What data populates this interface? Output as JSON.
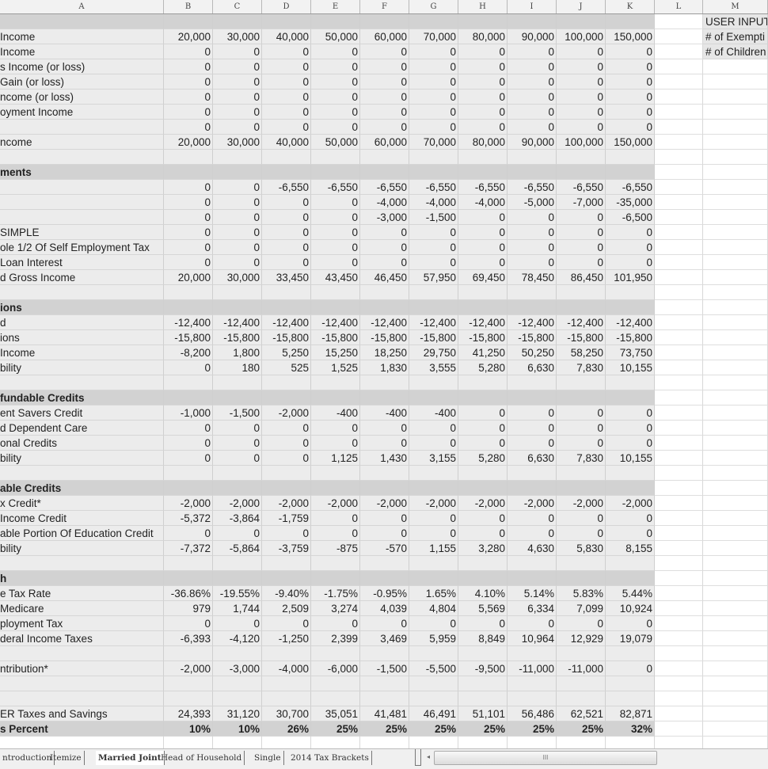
{
  "columns": [
    "A",
    "B",
    "C",
    "D",
    "E",
    "F",
    "G",
    "H",
    "I",
    "J",
    "K",
    "L",
    "M"
  ],
  "user_input": {
    "title": "USER INPUT",
    "exemptions_label": "# of Exempti",
    "children_label": "# of Children"
  },
  "rows": [
    {
      "type": "section",
      "label": "",
      "values": []
    },
    {
      "label": "Income",
      "values": [
        "20,000",
        "30,000",
        "40,000",
        "50,000",
        "60,000",
        "70,000",
        "80,000",
        "90,000",
        "100,000",
        "150,000"
      ]
    },
    {
      "label": "Income",
      "values": [
        "0",
        "0",
        "0",
        "0",
        "0",
        "0",
        "0",
        "0",
        "0",
        "0"
      ]
    },
    {
      "label": "s Income (or loss)",
      "values": [
        "0",
        "0",
        "0",
        "0",
        "0",
        "0",
        "0",
        "0",
        "0",
        "0"
      ]
    },
    {
      "label": "Gain (or loss)",
      "values": [
        "0",
        "0",
        "0",
        "0",
        "0",
        "0",
        "0",
        "0",
        "0",
        "0"
      ]
    },
    {
      "label": "ncome (or loss)",
      "values": [
        "0",
        "0",
        "0",
        "0",
        "0",
        "0",
        "0",
        "0",
        "0",
        "0"
      ]
    },
    {
      "label": "oyment Income",
      "values": [
        "0",
        "0",
        "0",
        "0",
        "0",
        "0",
        "0",
        "0",
        "0",
        "0"
      ]
    },
    {
      "label": "",
      "values": [
        "0",
        "0",
        "0",
        "0",
        "0",
        "0",
        "0",
        "0",
        "0",
        "0"
      ]
    },
    {
      "label": "ncome",
      "values": [
        "20,000",
        "30,000",
        "40,000",
        "50,000",
        "60,000",
        "70,000",
        "80,000",
        "90,000",
        "100,000",
        "150,000"
      ]
    },
    {
      "label": "",
      "values": []
    },
    {
      "type": "section",
      "label": "ments",
      "values": []
    },
    {
      "label": "",
      "values": [
        "0",
        "0",
        "-6,550",
        "-6,550",
        "-6,550",
        "-6,550",
        "-6,550",
        "-6,550",
        "-6,550",
        "-6,550"
      ]
    },
    {
      "label": "",
      "values": [
        "0",
        "0",
        "0",
        "0",
        "-4,000",
        "-4,000",
        "-4,000",
        "-5,000",
        "-7,000",
        "-35,000"
      ]
    },
    {
      "label": "",
      "values": [
        "0",
        "0",
        "0",
        "0",
        "-3,000",
        "-1,500",
        "0",
        "0",
        "0",
        "-6,500"
      ]
    },
    {
      "label": "SIMPLE",
      "values": [
        "0",
        "0",
        "0",
        "0",
        "0",
        "0",
        "0",
        "0",
        "0",
        "0"
      ]
    },
    {
      "label": "ole 1/2 Of Self Employment Tax",
      "values": [
        "0",
        "0",
        "0",
        "0",
        "0",
        "0",
        "0",
        "0",
        "0",
        "0"
      ]
    },
    {
      "label": " Loan Interest",
      "values": [
        "0",
        "0",
        "0",
        "0",
        "0",
        "0",
        "0",
        "0",
        "0",
        "0"
      ]
    },
    {
      "label": "d Gross Income",
      "values": [
        "20,000",
        "30,000",
        "33,450",
        "43,450",
        "46,450",
        "57,950",
        "69,450",
        "78,450",
        "86,450",
        "101,950"
      ]
    },
    {
      "label": "",
      "values": []
    },
    {
      "type": "section",
      "label": "ions",
      "values": []
    },
    {
      "label": "d",
      "values": [
        "-12,400",
        "-12,400",
        "-12,400",
        "-12,400",
        "-12,400",
        "-12,400",
        "-12,400",
        "-12,400",
        "-12,400",
        "-12,400"
      ]
    },
    {
      "label": "ions",
      "values": [
        "-15,800",
        "-15,800",
        "-15,800",
        "-15,800",
        "-15,800",
        "-15,800",
        "-15,800",
        "-15,800",
        "-15,800",
        "-15,800"
      ]
    },
    {
      "label": " Income",
      "values": [
        "-8,200",
        "1,800",
        "5,250",
        "15,250",
        "18,250",
        "29,750",
        "41,250",
        "50,250",
        "58,250",
        "73,750"
      ]
    },
    {
      "label": "bility",
      "values": [
        "0",
        "180",
        "525",
        "1,525",
        "1,830",
        "3,555",
        "5,280",
        "6,630",
        "7,830",
        "10,155"
      ]
    },
    {
      "label": "",
      "values": []
    },
    {
      "type": "section",
      "label": "fundable Credits",
      "values": []
    },
    {
      "label": "ent Savers Credit",
      "values": [
        "-1,000",
        "-1,500",
        "-2,000",
        "-400",
        "-400",
        "-400",
        "0",
        "0",
        "0",
        "0"
      ]
    },
    {
      "label": "d Dependent Care",
      "values": [
        "0",
        "0",
        "0",
        "0",
        "0",
        "0",
        "0",
        "0",
        "0",
        "0"
      ]
    },
    {
      "label": "onal Credits",
      "values": [
        "0",
        "0",
        "0",
        "0",
        "0",
        "0",
        "0",
        "0",
        "0",
        "0"
      ]
    },
    {
      "label": "bility",
      "values": [
        "0",
        "0",
        "0",
        "1,125",
        "1,430",
        "3,155",
        "5,280",
        "6,630",
        "7,830",
        "10,155"
      ]
    },
    {
      "label": "",
      "values": []
    },
    {
      "type": "section",
      "label": "able Credits",
      "values": []
    },
    {
      "label": "x Credit*",
      "values": [
        "-2,000",
        "-2,000",
        "-2,000",
        "-2,000",
        "-2,000",
        "-2,000",
        "-2,000",
        "-2,000",
        "-2,000",
        "-2,000"
      ]
    },
    {
      "label": "Income Credit",
      "values": [
        "-5,372",
        "-3,864",
        "-1,759",
        "0",
        "0",
        "0",
        "0",
        "0",
        "0",
        "0"
      ]
    },
    {
      "label": "able Portion Of Education Credit",
      "values": [
        "0",
        "0",
        "0",
        "0",
        "0",
        "0",
        "0",
        "0",
        "0",
        "0"
      ]
    },
    {
      "label": "bility",
      "values": [
        "-7,372",
        "-5,864",
        "-3,759",
        "-875",
        "-570",
        "1,155",
        "3,280",
        "4,630",
        "5,830",
        "8,155"
      ]
    },
    {
      "label": "",
      "values": []
    },
    {
      "type": "section",
      "label": "h",
      "values": []
    },
    {
      "label": "e Tax Rate",
      "values": [
        "-36.86%",
        "-19.55%",
        "-9.40%",
        "-1.75%",
        "-0.95%",
        "1.65%",
        "4.10%",
        "5.14%",
        "5.83%",
        "5.44%"
      ]
    },
    {
      "label": " Medicare",
      "values": [
        "979",
        "1,744",
        "2,509",
        "3,274",
        "4,039",
        "4,804",
        "5,569",
        "6,334",
        "7,099",
        "10,924"
      ]
    },
    {
      "label": "ployment Tax",
      "values": [
        "0",
        "0",
        "0",
        "0",
        "0",
        "0",
        "0",
        "0",
        "0",
        "0"
      ]
    },
    {
      "label": "deral Income Taxes",
      "values": [
        "-6,393",
        "-4,120",
        "-1,250",
        "2,399",
        "3,469",
        "5,959",
        "8,849",
        "10,964",
        "12,929",
        "19,079"
      ]
    },
    {
      "label": "",
      "values": []
    },
    {
      "label": "ntribution*",
      "values": [
        "-2,000",
        "-3,000",
        "-4,000",
        "-6,000",
        "-1,500",
        "-5,500",
        "-9,500",
        "-11,000",
        "-11,000",
        "0"
      ]
    },
    {
      "label": "",
      "values": []
    },
    {
      "label": "",
      "values": []
    },
    {
      "label": "ER Taxes and Savings",
      "values": [
        "24,393",
        "31,120",
        "30,700",
        "35,051",
        "41,481",
        "46,491",
        "51,101",
        "56,486",
        "62,521",
        "82,871"
      ]
    },
    {
      "type": "section",
      "label": "s Percent",
      "values": [
        "10%",
        "10%",
        "26%",
        "25%",
        "25%",
        "25%",
        "25%",
        "25%",
        "25%",
        "32%"
      ]
    },
    {
      "type": "empty",
      "label": "",
      "values": []
    }
  ],
  "sheet_tabs": [
    {
      "label": "ntroduction",
      "active": false
    },
    {
      "label": "Itemize",
      "active": false
    },
    {
      "label": "Married Joint",
      "active": true
    },
    {
      "label": "Head of Household",
      "active": false
    },
    {
      "label": "Single",
      "active": false
    },
    {
      "label": "2014 Tax Brackets",
      "active": false
    }
  ],
  "scrollbar": {
    "grip": "III",
    "left_arrow": "◂"
  }
}
